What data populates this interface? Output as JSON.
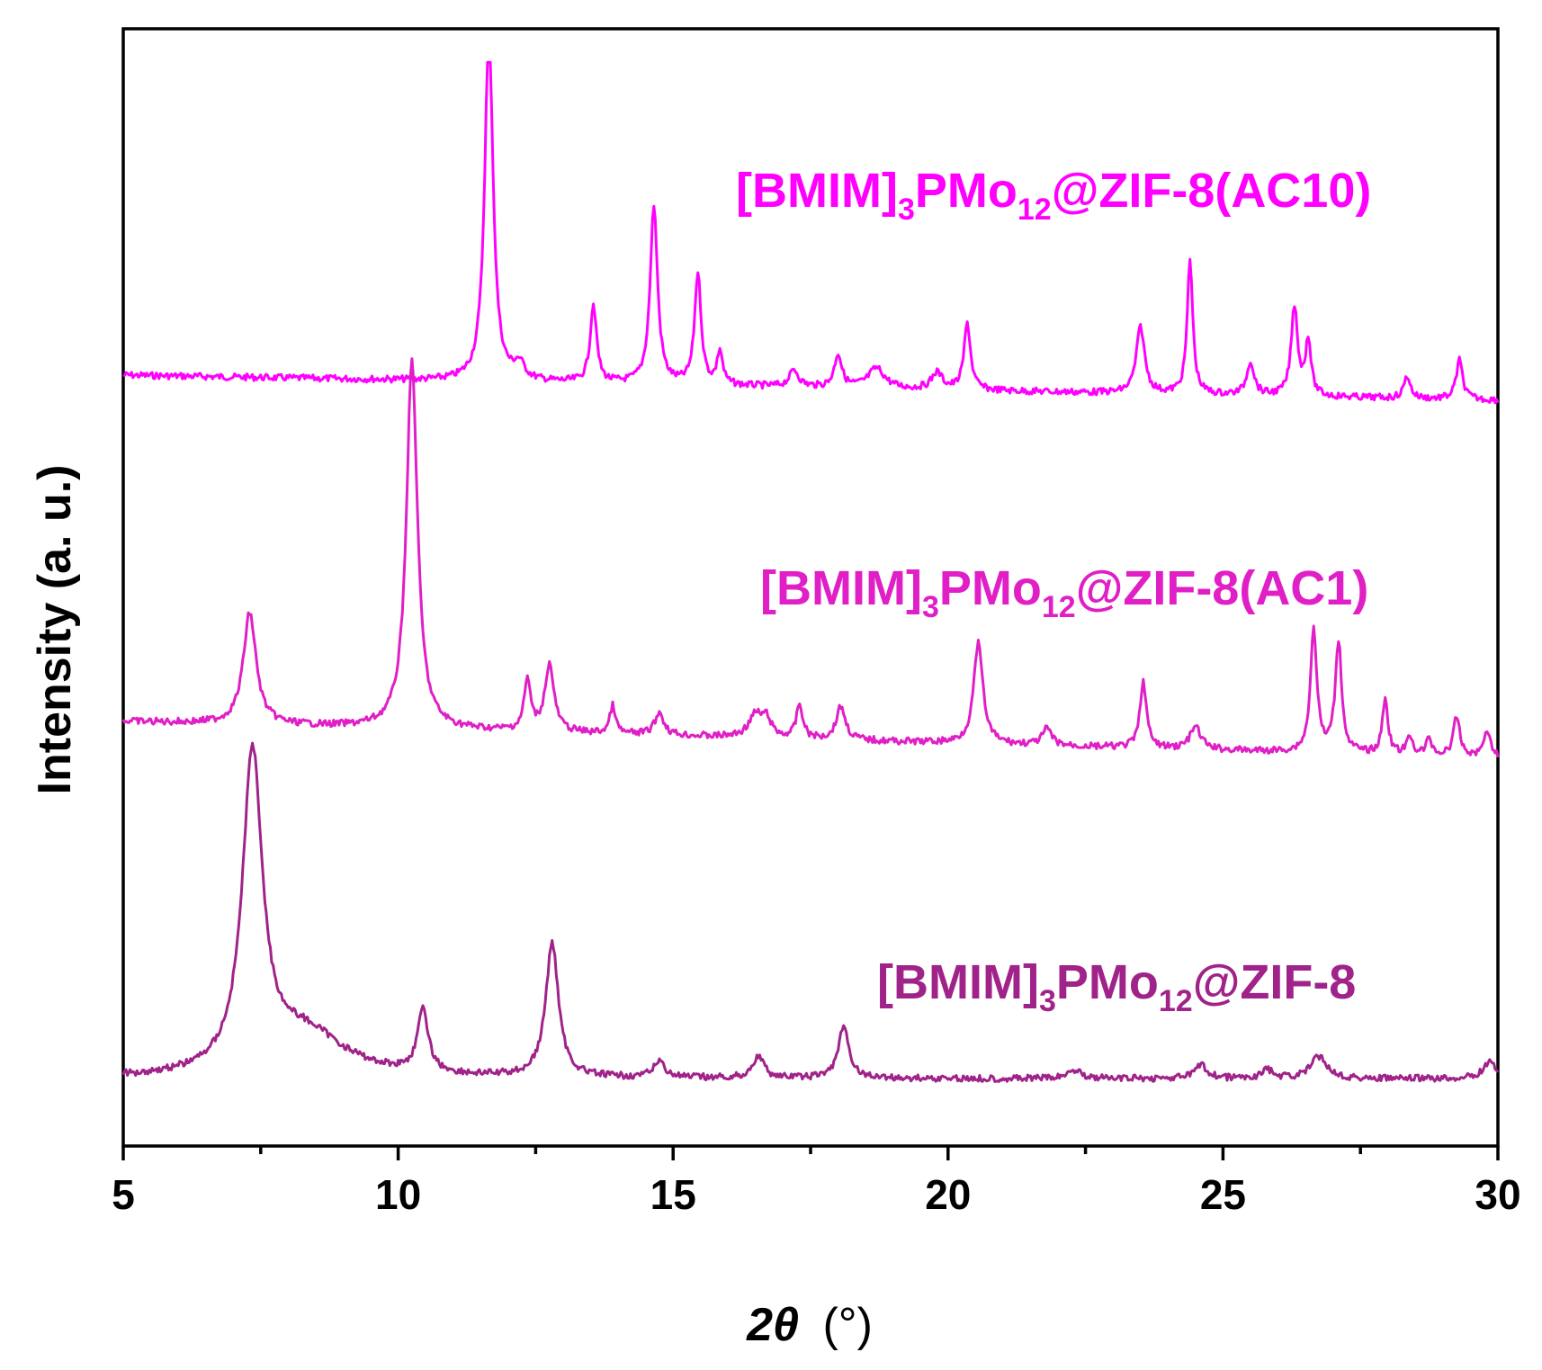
{
  "chart_data": {
    "type": "line",
    "xlabel_symbol": "2θ",
    "xlabel_unit": "(°)",
    "ylabel": "Intensity (a. u.)",
    "xlim": [
      5,
      30
    ],
    "xticks": [
      5,
      10,
      15,
      20,
      25,
      30
    ],
    "yticks_shown": false,
    "grid": false,
    "series": [
      {
        "name": "[BMIM]3PMo12@ZIF-8(AC10)",
        "label_parts": [
          "[BMIM]",
          "3",
          "PMo",
          "12",
          "@ZIF-8(AC10)"
        ],
        "color": "#ff00ff",
        "baseline": 0.31,
        "peaks": [
          [
            11.65,
            0.32,
            0.09
          ],
          [
            12.2,
            0.014,
            0.12
          ],
          [
            13.55,
            0.07,
            0.07
          ],
          [
            14.65,
            0.16,
            0.08
          ],
          [
            15.45,
            0.1,
            0.07
          ],
          [
            15.85,
            0.03,
            0.06
          ],
          [
            17.2,
            0.015,
            0.1
          ],
          [
            18.0,
            0.03,
            0.08
          ],
          [
            18.7,
            0.018,
            0.18
          ],
          [
            19.8,
            0.015,
            0.12
          ],
          [
            20.35,
            0.06,
            0.07
          ],
          [
            23.5,
            0.06,
            0.09
          ],
          [
            24.4,
            0.12,
            0.06
          ],
          [
            25.5,
            0.03,
            0.08
          ],
          [
            26.3,
            0.08,
            0.07
          ],
          [
            26.55,
            0.05,
            0.06
          ],
          [
            28.35,
            0.02,
            0.07
          ],
          [
            29.3,
            0.035,
            0.07
          ]
        ]
      },
      {
        "name": "[BMIM]3PMo12@ZIF-8(AC1)",
        "label_parts": [
          "[BMIM]",
          "3",
          "PMo",
          "12",
          "@ZIF-8(AC1)"
        ],
        "color": "#e01fc6",
        "baseline": 0.62,
        "peaks": [
          [
            7.3,
            0.1,
            0.14
          ],
          [
            10.25,
            0.33,
            0.12
          ],
          [
            12.35,
            0.045,
            0.07
          ],
          [
            12.75,
            0.06,
            0.1
          ],
          [
            13.9,
            0.025,
            0.06
          ],
          [
            14.75,
            0.02,
            0.1
          ],
          [
            16.5,
            0.02,
            0.15
          ],
          [
            16.7,
            0.015,
            0.1
          ],
          [
            17.3,
            0.03,
            0.07
          ],
          [
            18.05,
            0.03,
            0.1
          ],
          [
            20.55,
            0.09,
            0.1
          ],
          [
            21.8,
            0.015,
            0.1
          ],
          [
            23.55,
            0.06,
            0.07
          ],
          [
            24.5,
            0.02,
            0.12
          ],
          [
            26.65,
            0.11,
            0.07
          ],
          [
            27.1,
            0.1,
            0.07
          ],
          [
            27.95,
            0.05,
            0.06
          ],
          [
            28.4,
            0.015,
            0.07
          ],
          [
            28.75,
            0.015,
            0.06
          ],
          [
            29.25,
            0.035,
            0.07
          ],
          [
            29.8,
            0.025,
            0.07
          ]
        ]
      },
      {
        "name": "[BMIM]3PMo12@ZIF-8",
        "label_parts": [
          "[BMIM]",
          "3",
          "PMo",
          "12",
          "@ZIF-8"
        ],
        "color": "#a0238a",
        "baseline": 0.94,
        "peaks": [
          [
            7.35,
            0.28,
            0.22
          ],
          [
            8.3,
            0.04,
            0.9
          ],
          [
            10.45,
            0.055,
            0.12
          ],
          [
            12.8,
            0.12,
            0.14
          ],
          [
            14.75,
            0.015,
            0.12
          ],
          [
            16.55,
            0.02,
            0.12
          ],
          [
            18.1,
            0.045,
            0.12
          ],
          [
            22.3,
            0.008,
            0.15
          ],
          [
            24.6,
            0.012,
            0.14
          ],
          [
            25.8,
            0.008,
            0.12
          ],
          [
            26.75,
            0.02,
            0.18
          ],
          [
            29.85,
            0.015,
            0.15
          ]
        ]
      }
    ]
  }
}
